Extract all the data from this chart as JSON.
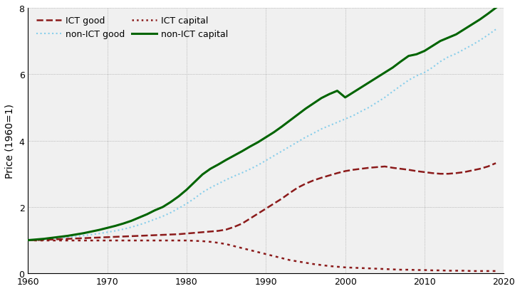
{
  "years": [
    1960,
    1961,
    1962,
    1963,
    1964,
    1965,
    1966,
    1967,
    1968,
    1969,
    1970,
    1971,
    1972,
    1973,
    1974,
    1975,
    1976,
    1977,
    1978,
    1979,
    1980,
    1981,
    1982,
    1983,
    1984,
    1985,
    1986,
    1987,
    1988,
    1989,
    1990,
    1991,
    1992,
    1993,
    1994,
    1995,
    1996,
    1997,
    1998,
    1999,
    2000,
    2001,
    2002,
    2003,
    2004,
    2005,
    2006,
    2007,
    2008,
    2009,
    2010,
    2011,
    2012,
    2013,
    2014,
    2015,
    2016,
    2017,
    2018,
    2019
  ],
  "non_ict_capital": [
    1.0,
    1.02,
    1.04,
    1.07,
    1.1,
    1.13,
    1.17,
    1.21,
    1.26,
    1.31,
    1.37,
    1.43,
    1.5,
    1.58,
    1.68,
    1.78,
    1.9,
    2.0,
    2.15,
    2.32,
    2.52,
    2.75,
    2.98,
    3.15,
    3.28,
    3.42,
    3.55,
    3.68,
    3.82,
    3.95,
    4.1,
    4.25,
    4.42,
    4.6,
    4.78,
    4.96,
    5.12,
    5.28,
    5.4,
    5.5,
    5.3,
    5.45,
    5.6,
    5.75,
    5.9,
    6.05,
    6.2,
    6.38,
    6.55,
    6.6,
    6.7,
    6.85,
    7.0,
    7.1,
    7.2,
    7.35,
    7.5,
    7.65,
    7.82,
    8.0
  ],
  "non_ict_good": [
    1.0,
    1.01,
    1.02,
    1.04,
    1.06,
    1.08,
    1.11,
    1.14,
    1.17,
    1.2,
    1.24,
    1.28,
    1.33,
    1.39,
    1.46,
    1.54,
    1.63,
    1.72,
    1.83,
    1.96,
    2.1,
    2.26,
    2.44,
    2.58,
    2.7,
    2.82,
    2.93,
    3.03,
    3.14,
    3.26,
    3.4,
    3.54,
    3.68,
    3.82,
    3.96,
    4.1,
    4.22,
    4.35,
    4.45,
    4.55,
    4.65,
    4.75,
    4.88,
    5.0,
    5.15,
    5.3,
    5.48,
    5.65,
    5.82,
    5.95,
    6.05,
    6.2,
    6.38,
    6.52,
    6.62,
    6.75,
    6.88,
    7.02,
    7.18,
    7.35
  ],
  "ict_good": [
    1.0,
    1.0,
    1.01,
    1.02,
    1.03,
    1.04,
    1.05,
    1.06,
    1.07,
    1.08,
    1.09,
    1.1,
    1.11,
    1.12,
    1.13,
    1.14,
    1.15,
    1.16,
    1.17,
    1.18,
    1.2,
    1.22,
    1.24,
    1.26,
    1.28,
    1.32,
    1.4,
    1.5,
    1.65,
    1.8,
    1.95,
    2.1,
    2.25,
    2.42,
    2.58,
    2.7,
    2.8,
    2.88,
    2.95,
    3.02,
    3.08,
    3.12,
    3.15,
    3.18,
    3.2,
    3.22,
    3.18,
    3.15,
    3.12,
    3.08,
    3.05,
    3.02,
    3.0,
    3.0,
    3.02,
    3.05,
    3.1,
    3.15,
    3.22,
    3.32
  ],
  "ict_capital": [
    1.0,
    0.99,
    0.99,
    0.99,
    0.99,
    0.99,
    0.99,
    0.99,
    0.99,
    0.99,
    0.99,
    0.99,
    0.99,
    0.99,
    0.99,
    0.99,
    0.99,
    0.99,
    0.99,
    0.99,
    0.99,
    0.98,
    0.97,
    0.95,
    0.92,
    0.88,
    0.82,
    0.76,
    0.7,
    0.64,
    0.58,
    0.52,
    0.46,
    0.4,
    0.36,
    0.32,
    0.28,
    0.25,
    0.22,
    0.2,
    0.18,
    0.17,
    0.16,
    0.15,
    0.14,
    0.13,
    0.12,
    0.11,
    0.11,
    0.1,
    0.1,
    0.09,
    0.09,
    0.08,
    0.08,
    0.08,
    0.07,
    0.07,
    0.07,
    0.07
  ],
  "color_dark_red": "#8B1A1A",
  "color_green": "#006400",
  "color_light_blue": "#87CEEB",
  "ylabel": "Price (1960=1)",
  "xlim": [
    1960,
    2020
  ],
  "ylim": [
    0,
    8
  ],
  "yticks": [
    0,
    2,
    4,
    6,
    8
  ],
  "xticks": [
    1960,
    1970,
    1980,
    1990,
    2000,
    2010,
    2020
  ],
  "background_color": "#f0f0f0"
}
